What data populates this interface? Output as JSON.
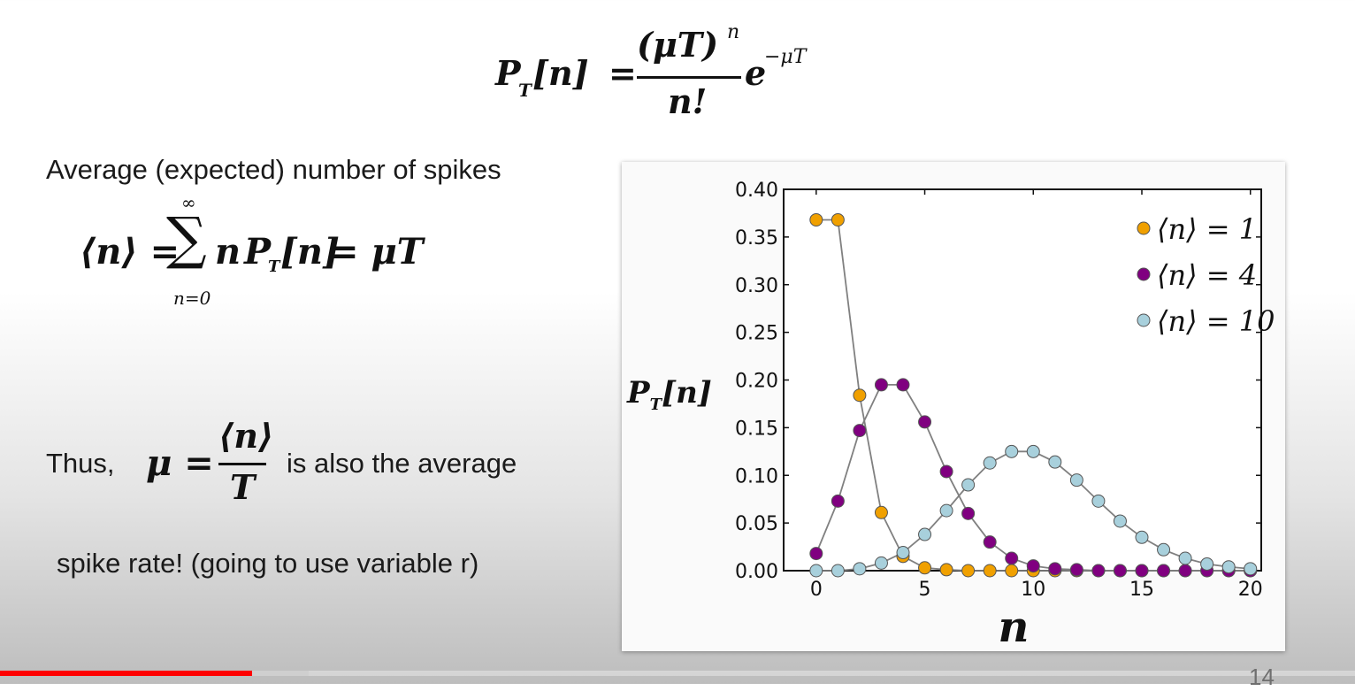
{
  "formulas": {
    "poisson": {
      "lhs_p": "P",
      "lhs_sub": "T",
      "lhs_arg": "[n]",
      "equals": "=",
      "numerator": "(μT)",
      "numerator_exp": "n",
      "denominator": "n!",
      "exp_base": "e",
      "exp_power": "−μT"
    },
    "average": {
      "lhs": "⟨n⟩ =",
      "sum": "∑",
      "sum_upper": "∞",
      "sum_lower": "n=0",
      "term_n": "n",
      "term_p": "P",
      "term_sub": "T",
      "term_arg": "[n]",
      "rhs": "= μT"
    },
    "mu_def": {
      "lhs": "μ =",
      "numerator": "⟨n⟩",
      "denominator": "T"
    }
  },
  "text": {
    "average_caption": "Average (expected) number of spikes",
    "thus": "Thus,",
    "also_average": "is also the average",
    "spike_rate": "spike rate! (going to use variable r)"
  },
  "chart_data": {
    "type": "line",
    "x": [
      0,
      1,
      2,
      3,
      4,
      5,
      6,
      7,
      8,
      9,
      10,
      11,
      12,
      13,
      14,
      15,
      16,
      17,
      18,
      19,
      20
    ],
    "xlim": [
      -1.5,
      20.5
    ],
    "ylim": [
      0,
      0.4
    ],
    "xticks": [
      "0",
      "5",
      "10",
      "15",
      "20"
    ],
    "xtick_values": [
      0,
      5,
      10,
      15,
      20
    ],
    "yticks": [
      "0.00",
      "0.05",
      "0.10",
      "0.15",
      "0.20",
      "0.25",
      "0.30",
      "0.35",
      "0.40"
    ],
    "ytick_values": [
      0,
      0.05,
      0.1,
      0.15,
      0.2,
      0.25,
      0.3,
      0.35,
      0.4
    ],
    "xlabel": "n",
    "ylabel": "P_T[n]",
    "ylabel_p": "P",
    "ylabel_sub": "T",
    "ylabel_arg": "[n]",
    "legend_position": "top-right",
    "line_color": "#808080",
    "series": [
      {
        "name": "⟨n⟩ = 1",
        "color": "#f0a000",
        "values": [
          0.368,
          0.368,
          0.184,
          0.061,
          0.015,
          0.003,
          0.001,
          0.0,
          0.0,
          0.0,
          0.0,
          0.0,
          0.0,
          0.0,
          0.0,
          0.0,
          0.0,
          0.0,
          0.0,
          0.0,
          0.0
        ]
      },
      {
        "name": "⟨n⟩ = 4",
        "color": "#800080",
        "values": [
          0.018,
          0.073,
          0.147,
          0.195,
          0.195,
          0.156,
          0.104,
          0.06,
          0.03,
          0.013,
          0.005,
          0.002,
          0.001,
          0.0,
          0.0,
          0.0,
          0.0,
          0.0,
          0.0,
          0.0,
          0.0
        ]
      },
      {
        "name": "⟨n⟩ = 10",
        "color": "#a8d0dc",
        "values": [
          0.0,
          0.0,
          0.002,
          0.008,
          0.019,
          0.038,
          0.063,
          0.09,
          0.113,
          0.125,
          0.125,
          0.114,
          0.095,
          0.073,
          0.052,
          0.035,
          0.022,
          0.013,
          0.007,
          0.004,
          0.002
        ]
      }
    ]
  },
  "player": {
    "played_fraction": 0.186,
    "buffered_fraction": 0.228,
    "slide_number": "14"
  }
}
